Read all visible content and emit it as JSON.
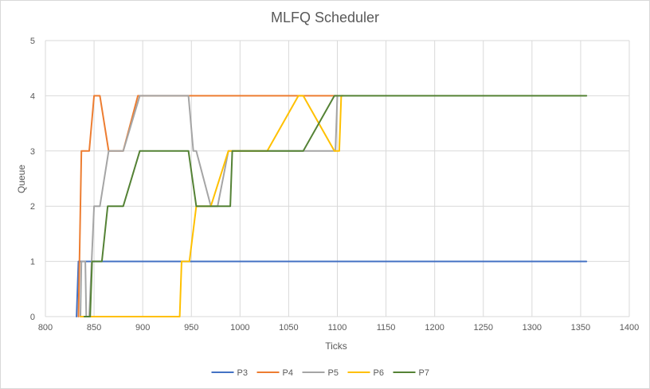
{
  "chart_data": {
    "type": "line",
    "title": "MLFQ Scheduler",
    "xlabel": "Ticks",
    "ylabel": "Queue",
    "xlim": [
      800,
      1400
    ],
    "ylim": [
      0,
      5
    ],
    "x_ticks": [
      800,
      850,
      900,
      950,
      1000,
      1050,
      1100,
      1150,
      1200,
      1250,
      1300,
      1350,
      1400
    ],
    "y_ticks": [
      0,
      1,
      2,
      3,
      4,
      5
    ],
    "grid": "vertical and horizontal major gridlines",
    "legend_position": "bottom",
    "series": [
      {
        "name": "P3",
        "color": "#4472c4",
        "points": [
          [
            832,
            0
          ],
          [
            834,
            1
          ],
          [
            1356,
            1
          ]
        ]
      },
      {
        "name": "P4",
        "color": "#ed7d31",
        "points": [
          [
            834,
            0
          ],
          [
            837,
            3
          ],
          [
            845,
            3
          ],
          [
            850,
            4
          ],
          [
            856,
            4
          ],
          [
            865,
            3
          ],
          [
            869,
            3
          ],
          [
            875,
            3
          ],
          [
            880,
            3
          ],
          [
            895,
            4
          ],
          [
            1100,
            4
          ]
        ]
      },
      {
        "name": "P5",
        "color": "#a5a5a5",
        "points": [
          [
            836,
            0
          ],
          [
            837,
            1
          ],
          [
            841,
            1
          ],
          [
            842,
            0
          ],
          [
            845,
            0
          ],
          [
            850,
            2
          ],
          [
            856,
            2
          ],
          [
            865,
            3
          ],
          [
            880,
            3
          ],
          [
            897,
            4
          ],
          [
            947,
            4
          ],
          [
            952,
            3
          ],
          [
            955,
            3
          ],
          [
            970,
            2
          ],
          [
            977,
            2
          ],
          [
            988,
            3
          ],
          [
            1065,
            3
          ],
          [
            1098,
            3
          ],
          [
            1100,
            4
          ]
        ]
      },
      {
        "name": "P6",
        "color": "#ffc000",
        "points": [
          [
            836,
            0
          ],
          [
            938,
            0
          ],
          [
            940,
            1
          ],
          [
            948,
            1
          ],
          [
            955,
            2
          ],
          [
            970,
            2
          ],
          [
            988,
            3
          ],
          [
            1028,
            3
          ],
          [
            1060,
            4
          ],
          [
            1065,
            4
          ],
          [
            1097,
            3
          ],
          [
            1102,
            3
          ],
          [
            1104,
            4
          ],
          [
            1106,
            4
          ]
        ]
      },
      {
        "name": "P7",
        "color": "#548235",
        "points": [
          [
            840,
            0
          ],
          [
            846,
            0
          ],
          [
            848,
            1
          ],
          [
            858,
            1
          ],
          [
            864,
            2
          ],
          [
            880,
            2
          ],
          [
            897,
            3
          ],
          [
            947,
            3
          ],
          [
            955,
            2
          ],
          [
            990,
            2
          ],
          [
            992,
            3
          ],
          [
            1065,
            3
          ],
          [
            1097,
            4
          ],
          [
            1356,
            4
          ]
        ]
      }
    ]
  }
}
